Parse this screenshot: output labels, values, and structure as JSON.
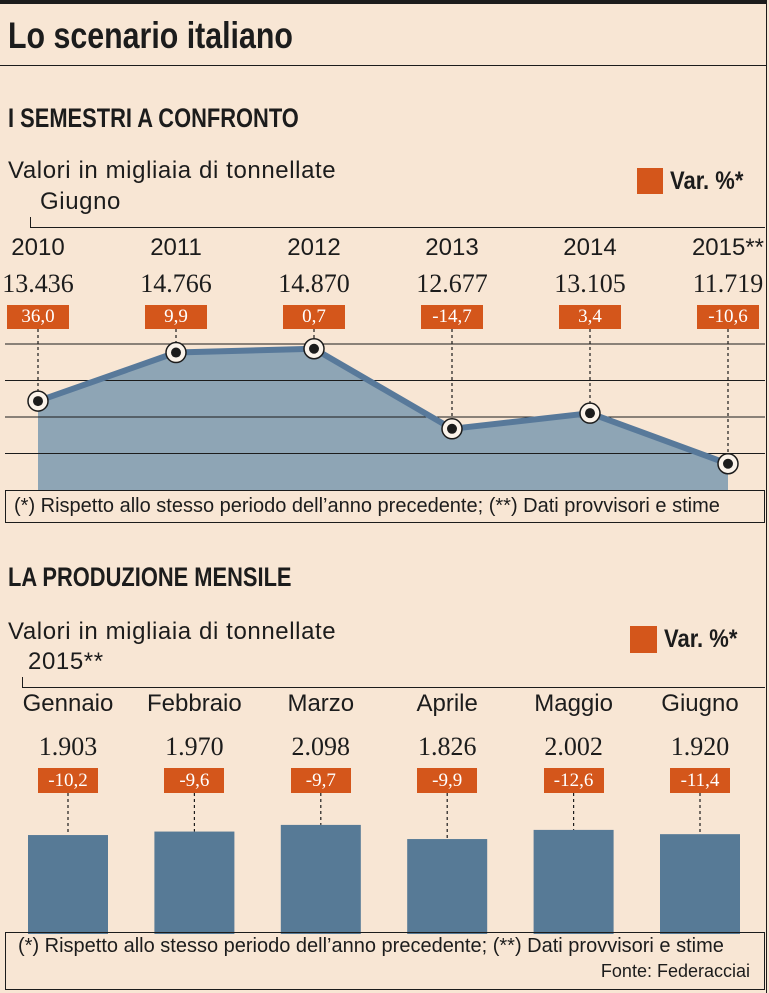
{
  "page_title": "Lo scenario italiano",
  "colors": {
    "background": "#f8e6d4",
    "accent": "#d4561b",
    "ink": "#1c1c1c",
    "area": "#8ea5b5",
    "line": "#58799a",
    "bar": "#577a96",
    "marker_ring": "#fbf3ea"
  },
  "chart_data": [
    {
      "type": "area",
      "title": "I SEMESTRI A CONFRONTO",
      "ylabel": "Valori in migliaia di tonnellate",
      "subtitle": "Giugno",
      "legend": "Var. %*",
      "legend_position": "top-right",
      "categories": [
        "2010",
        "2011",
        "2012",
        "2013",
        "2014",
        "2015**"
      ],
      "values": [
        13436,
        14766,
        14870,
        12677,
        13105,
        11719
      ],
      "value_labels": [
        "13.436",
        "14.766",
        "14.870",
        "12.677",
        "13.105",
        "11.719"
      ],
      "var_pct": [
        36.0,
        9.9,
        0.7,
        -14.7,
        3.4,
        -10.6
      ],
      "var_labels": [
        "36,0",
        "9,9",
        "0,7",
        "-14,7",
        "3,4",
        "-10,6"
      ],
      "ylim": [
        11000,
        15000
      ],
      "grid": true,
      "gridlines": [
        12000,
        13000,
        14000,
        15000
      ],
      "footnote": "(*) Rispetto allo stesso periodo dell’anno precedente; (**) Dati provvisori e stime"
    },
    {
      "type": "bar",
      "title": "LA PRODUZIONE MENSILE",
      "ylabel": "Valori in migliaia di tonnellate",
      "subtitle": "2015**",
      "legend": "Var. %*",
      "legend_position": "top-right",
      "categories": [
        "Gennaio",
        "Febbraio",
        "Marzo",
        "Aprile",
        "Maggio",
        "Giugno"
      ],
      "values": [
        1903,
        1970,
        2098,
        1826,
        2002,
        1920
      ],
      "value_labels": [
        "1.903",
        "1.970",
        "2.098",
        "1.826",
        "2.002",
        "1.920"
      ],
      "var_pct": [
        -10.2,
        -9.6,
        -9.7,
        -9.9,
        -12.6,
        -11.4
      ],
      "var_labels": [
        "-10,2",
        "-9,6",
        "-9,7",
        "-9,9",
        "-12,6",
        "-11,4"
      ],
      "ylim": [
        0,
        2500
      ],
      "grid": false,
      "footnote": "(*) Rispetto allo stesso periodo dell’anno precedente; (**) Dati provvisori e stime",
      "source": "Fonte: Federacciai"
    }
  ]
}
